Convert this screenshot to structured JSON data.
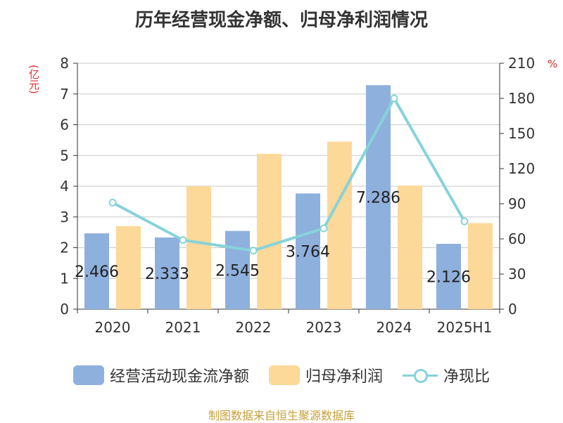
{
  "title": "历年经营现金净额、归母净利润情况",
  "unit_left": "(亿元)",
  "unit_right": "%",
  "source": "制图数据来自恒生聚源数据库",
  "colors": {
    "bar1": "#8eb0dd",
    "bar2": "#fcd899",
    "line": "#86d3d9"
  },
  "chart_data": {
    "type": "bar",
    "categories": [
      "2020",
      "2021",
      "2022",
      "2023",
      "2024",
      "2025H1"
    ],
    "series": [
      {
        "name": "经营活动现金流净额",
        "type": "bar",
        "axis": "left",
        "values": [
          2.466,
          2.333,
          2.545,
          3.764,
          7.286,
          2.126
        ],
        "labels": [
          "2.466",
          "2.333",
          "2.545",
          "3.764",
          "7.286",
          "2.126"
        ]
      },
      {
        "name": "归母净利润",
        "type": "bar",
        "axis": "left",
        "values": [
          2.7,
          4.0,
          5.05,
          5.45,
          4.02,
          2.8
        ]
      },
      {
        "name": "净现比",
        "type": "line",
        "axis": "right",
        "values": [
          91,
          59,
          50,
          69,
          180,
          75
        ]
      }
    ],
    "ylim_left": [
      0,
      8
    ],
    "yticks_left": [
      "0",
      "1",
      "2",
      "3",
      "4",
      "5",
      "6",
      "7",
      "8"
    ],
    "ylim_right": [
      0,
      210
    ],
    "yticks_right": [
      "0",
      "30",
      "60",
      "90",
      "120",
      "150",
      "180",
      "210"
    ],
    "grid": true,
    "legend": "bottom-center"
  }
}
